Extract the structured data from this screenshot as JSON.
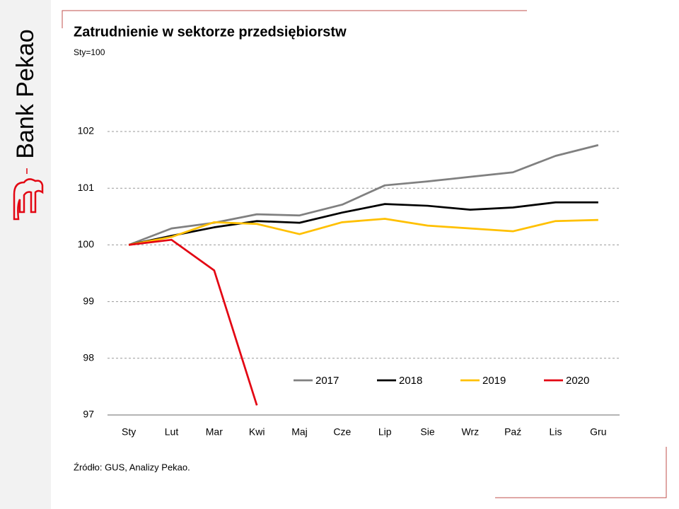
{
  "brand": "Bank Pekao",
  "chart_data": {
    "type": "line",
    "title": "Zatrudnienie w sektorze przedsiębiorstw",
    "subtitle": "Sty=100",
    "source": "Źródło: GUS,  Analizy Pekao.",
    "categories": [
      "Sty",
      "Lut",
      "Mar",
      "Kwi",
      "Maj",
      "Cze",
      "Lip",
      "Sie",
      "Wrz",
      "Paź",
      "Lis",
      "Gru"
    ],
    "series": [
      {
        "name": "2017",
        "color": "#808080",
        "values": [
          100,
          100.29,
          100.39,
          100.54,
          100.52,
          100.71,
          101.05,
          101.12,
          101.2,
          101.28,
          101.57,
          101.76
        ]
      },
      {
        "name": "2018",
        "color": "#000000",
        "values": [
          100,
          100.16,
          100.31,
          100.42,
          100.39,
          100.57,
          100.72,
          100.69,
          100.62,
          100.66,
          100.75,
          100.75
        ]
      },
      {
        "name": "2019",
        "color": "#ffc000",
        "values": [
          100,
          100.14,
          100.4,
          100.37,
          100.19,
          100.4,
          100.46,
          100.34,
          100.29,
          100.24,
          100.42,
          100.44
        ]
      },
      {
        "name": "2020",
        "color": "#e30613",
        "values": [
          100,
          100.09,
          99.55,
          97.17,
          null,
          null,
          null,
          null,
          null,
          null,
          null,
          null
        ]
      }
    ],
    "ylim": [
      97,
      102
    ],
    "yticks": [
      97,
      98,
      99,
      100,
      101,
      102
    ],
    "grid": true,
    "legend": "lower right"
  }
}
